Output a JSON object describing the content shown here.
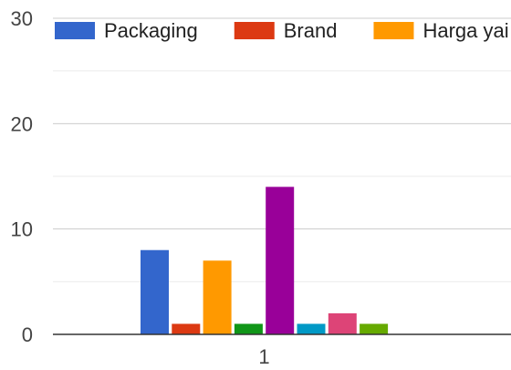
{
  "chart_data": {
    "type": "bar",
    "categories": [
      "1"
    ],
    "ylim": [
      0,
      30
    ],
    "y_ticks": [
      0,
      10,
      20,
      30
    ],
    "grid": true,
    "legend_position": "top",
    "series": [
      {
        "name": "Packaging",
        "values": [
          8
        ],
        "color": "#3366cc"
      },
      {
        "name": "Brand",
        "values": [
          1
        ],
        "color": "#dc3912"
      },
      {
        "name": "Harga yai",
        "values": [
          7
        ],
        "color": "#ff9900"
      },
      {
        "values": [
          1
        ],
        "color": "#109618"
      },
      {
        "values": [
          14
        ],
        "color": "#990099"
      },
      {
        "values": [
          1
        ],
        "color": "#0099c6"
      },
      {
        "values": [
          2
        ],
        "color": "#dd4477"
      },
      {
        "values": [
          1
        ],
        "color": "#66aa00"
      }
    ]
  }
}
